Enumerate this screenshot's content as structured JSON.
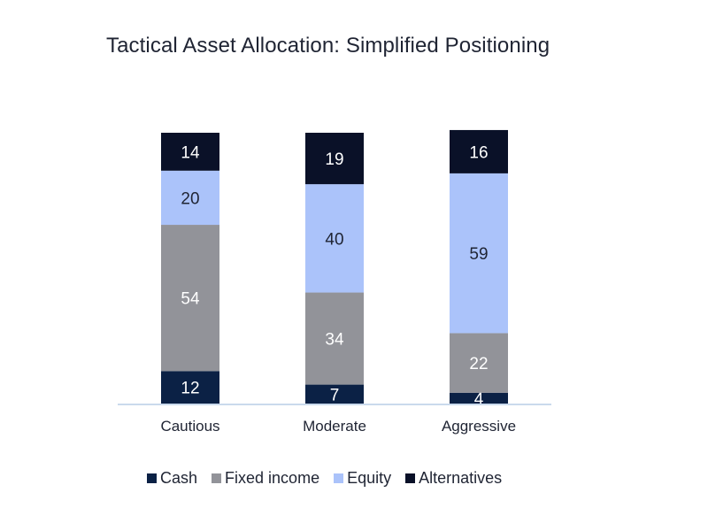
{
  "chart_data": {
    "type": "bar",
    "stacked": true,
    "title": "Tactical Asset Allocation: Simplified Positioning",
    "categories": [
      "Cautious",
      "Moderate",
      "Aggressive"
    ],
    "series": [
      {
        "name": "Cash",
        "color": "#0b2145",
        "label_color": "#ffffff",
        "values": [
          12,
          7,
          4
        ]
      },
      {
        "name": "Fixed income",
        "color": "#929399",
        "label_color": "#ffffff",
        "values": [
          54,
          34,
          22
        ]
      },
      {
        "name": "Equity",
        "color": "#abc3fa",
        "label_color": "#1f2433",
        "values": [
          20,
          40,
          59
        ]
      },
      {
        "name": "Alternatives",
        "color": "#0a1128",
        "label_color": "#ffffff",
        "values": [
          14,
          19,
          16
        ]
      }
    ],
    "ylim": [
      0,
      100
    ],
    "legend_position": "bottom",
    "grid": false
  }
}
